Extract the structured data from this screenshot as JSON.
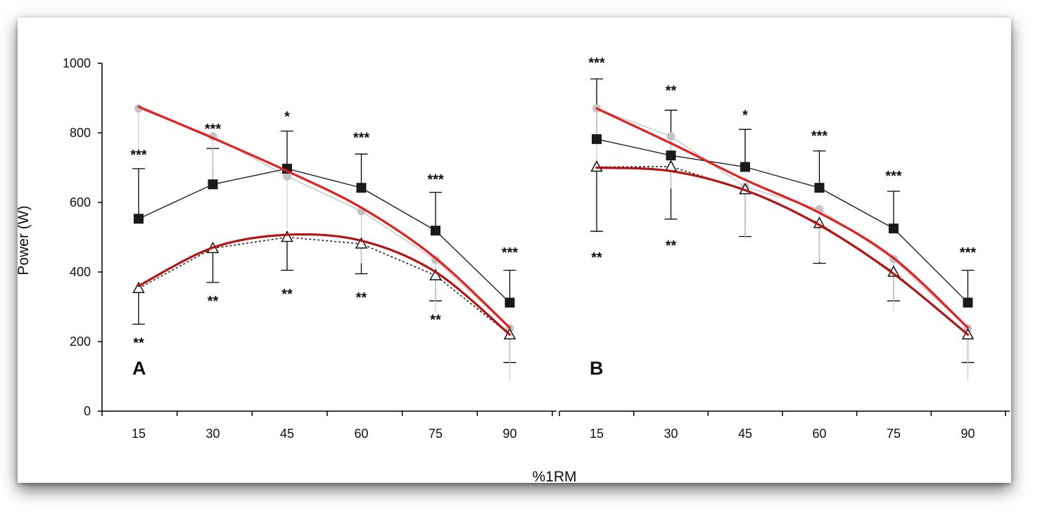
{
  "chart_data": {
    "type": "line",
    "xlabel": "%1RM",
    "ylabel": "Power (W)",
    "ylim": [
      0,
      1000
    ],
    "yticks": [
      "0",
      "200",
      "400",
      "600",
      "800",
      "1000"
    ],
    "categories": [
      "15",
      "30",
      "45",
      "60",
      "75",
      "90"
    ],
    "panels": [
      {
        "label": "A",
        "series": [
          {
            "marker": "square",
            "values": [
              553,
              652,
              697,
              642,
              519,
              312
            ],
            "err_high": [
              697,
              755,
              805,
              739,
              629,
              405
            ]
          },
          {
            "marker": "triangle",
            "values": [
              353,
              468,
              500,
              481,
              390,
              220
            ],
            "err_low": [
              250,
              370,
              405,
              395,
              317,
              140
            ]
          },
          {
            "marker": "circle",
            "values": [
              870,
              790,
              675,
              575,
              435,
              238
            ]
          }
        ],
        "fits": [
          {
            "color": "#e31e1e",
            "values": [
              875,
              785,
              690,
              585,
              440,
              240
            ]
          },
          {
            "color": "#b41414",
            "values": [
              360,
              470,
              507,
              490,
              400,
              220
            ]
          }
        ],
        "annotations": [
          {
            "text": "***",
            "x": "15",
            "y": 735
          },
          {
            "text": "**",
            "x": "15",
            "y": 195
          },
          {
            "text": "***",
            "x": "30",
            "y": 810
          },
          {
            "text": "**",
            "x": "30",
            "y": 315
          },
          {
            "text": "*",
            "x": "45",
            "y": 845
          },
          {
            "text": "**",
            "x": "45",
            "y": 335
          },
          {
            "text": "***",
            "x": "60",
            "y": 785
          },
          {
            "text": "**",
            "x": "60",
            "y": 325
          },
          {
            "text": "***",
            "x": "75",
            "y": 665
          },
          {
            "text": "**",
            "x": "75",
            "y": 262
          },
          {
            "text": "***",
            "x": "90",
            "y": 455
          }
        ]
      },
      {
        "label": "B",
        "series": [
          {
            "marker": "square",
            "values": [
              782,
              735,
              702,
              642,
              525,
              312
            ],
            "err_high": [
              955,
              865,
              810,
              748,
              632,
              405
            ]
          },
          {
            "marker": "triangle",
            "values": [
              702,
              703,
              637,
              540,
              400,
              220
            ],
            "err_low": [
              517,
              552,
              502,
              425,
              317,
              140
            ]
          },
          {
            "marker": "circle",
            "values": [
              870,
              790,
              645,
              580,
              437,
              238
            ]
          }
        ],
        "fits": [
          {
            "color": "#e31e1e",
            "values": [
              870,
              770,
              665,
              570,
              440,
              240
            ]
          },
          {
            "color": "#b41414",
            "values": [
              700,
              690,
              635,
              535,
              395,
              220
            ]
          }
        ],
        "annotations": [
          {
            "text": "***",
            "x": "15",
            "y": 1000
          },
          {
            "text": "**",
            "x": "15",
            "y": 440
          },
          {
            "text": "**",
            "x": "30",
            "y": 920
          },
          {
            "text": "**",
            "x": "30",
            "y": 475
          },
          {
            "text": "*",
            "x": "45",
            "y": 850
          },
          {
            "text": "***",
            "x": "60",
            "y": 790
          },
          {
            "text": "***",
            "x": "75",
            "y": 675
          },
          {
            "text": "***",
            "x": "90",
            "y": 455
          }
        ]
      }
    ]
  }
}
